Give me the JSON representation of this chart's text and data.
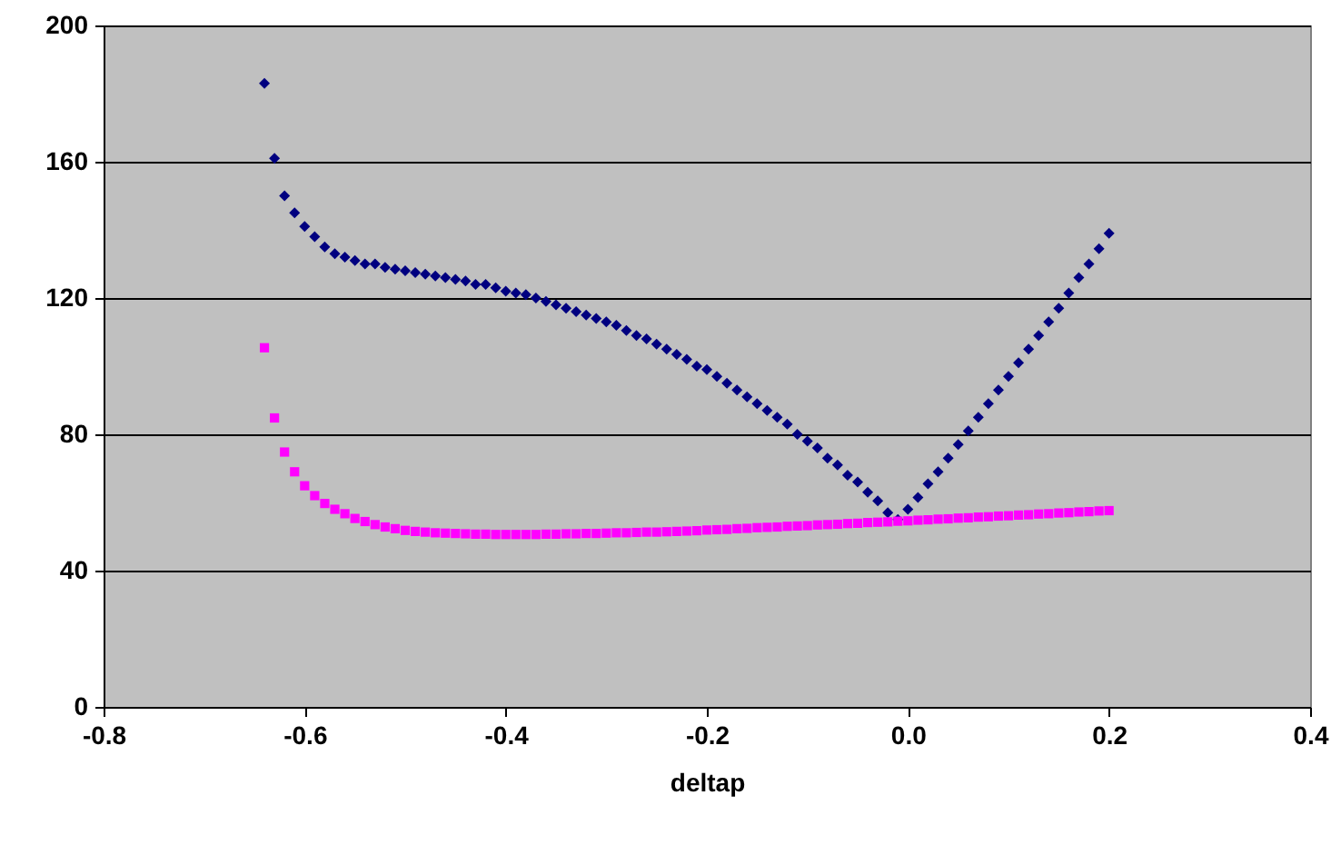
{
  "chart_data": {
    "type": "scatter",
    "xlabel": "deltap",
    "x": [
      -0.64,
      -0.63,
      -0.62,
      -0.61,
      -0.6,
      -0.59,
      -0.58,
      -0.57,
      -0.56,
      -0.55,
      -0.54,
      -0.53,
      -0.52,
      -0.51,
      -0.5,
      -0.49,
      -0.48,
      -0.47,
      -0.46,
      -0.45,
      -0.44,
      -0.43,
      -0.42,
      -0.41,
      -0.4,
      -0.39,
      -0.38,
      -0.37,
      -0.36,
      -0.35,
      -0.34,
      -0.33,
      -0.32,
      -0.31,
      -0.3,
      -0.29,
      -0.28,
      -0.27,
      -0.26,
      -0.25,
      -0.24,
      -0.23,
      -0.22,
      -0.21,
      -0.2,
      -0.19,
      -0.18,
      -0.17,
      -0.16,
      -0.15,
      -0.14,
      -0.13,
      -0.12,
      -0.11,
      -0.1,
      -0.09,
      -0.08,
      -0.07,
      -0.06,
      -0.05,
      -0.04,
      -0.03,
      -0.02,
      -0.01,
      0,
      0.01,
      0.02,
      0.03,
      0.04,
      0.05,
      0.06,
      0.07,
      0.08,
      0.09,
      0.1,
      0.11,
      0.12,
      0.13,
      0.14,
      0.15,
      0.16,
      0.17,
      0.18,
      0.19,
      0.2
    ],
    "series": [
      {
        "color": "#000080",
        "marker": "diamond",
        "values": [
          183,
          161,
          150,
          145,
          141,
          138,
          135,
          133,
          132,
          131,
          130,
          130,
          129,
          128.5,
          128,
          127.5,
          127,
          126.5,
          126,
          125.5,
          125,
          124,
          124,
          123,
          122,
          121.5,
          121,
          120,
          119,
          118,
          117,
          116,
          115,
          114,
          113,
          112,
          110.5,
          109,
          108,
          106.5,
          105,
          103.5,
          102,
          100,
          99,
          97,
          95,
          93,
          91,
          89,
          87,
          85,
          83,
          80,
          78,
          76,
          73,
          71,
          68,
          66,
          63,
          60.5,
          57,
          55,
          58,
          61.5,
          65.5,
          69,
          73,
          77,
          81,
          85,
          89,
          93,
          97,
          101,
          105,
          109,
          113,
          117,
          121.5,
          126,
          130,
          134.5,
          139
        ]
      },
      {
        "color": "#ff00ff",
        "marker": "square",
        "values": [
          105.4,
          84.8,
          74.8,
          69,
          64.9,
          62,
          59.7,
          58,
          56.7,
          55.3,
          54.4,
          53.5,
          52.8,
          52.3,
          51.8,
          51.5,
          51.3,
          51.1,
          51,
          50.9,
          50.8,
          50.7,
          50.7,
          50.6,
          50.6,
          50.6,
          50.6,
          50.6,
          50.7,
          50.7,
          50.8,
          50.8,
          50.9,
          50.9,
          51,
          51.1,
          51.1,
          51.2,
          51.3,
          51.3,
          51.4,
          51.5,
          51.6,
          51.7,
          51.9,
          52,
          52.1,
          52.3,
          52.4,
          52.6,
          52.7,
          52.8,
          53,
          53.1,
          53.2,
          53.4,
          53.5,
          53.6,
          53.8,
          53.9,
          54.1,
          54.2,
          54.3,
          54.5,
          54.6,
          54.8,
          54.9,
          55.1,
          55.2,
          55.4,
          55.5,
          55.7,
          55.8,
          56,
          56.1,
          56.3,
          56.4,
          56.6,
          56.7,
          56.9,
          57,
          57.2,
          57.3,
          57.5,
          57.6
        ]
      }
    ],
    "xlim": [
      -0.8,
      0.4
    ],
    "xticks": [
      -0.8,
      -0.6,
      -0.4,
      -0.2,
      {
        "value": 0,
        "label": "0.0"
      },
      0.2,
      0.4
    ],
    "ylim": [
      0,
      200
    ],
    "yticks": [
      0,
      40,
      80,
      120,
      160,
      200
    ],
    "grid": "y"
  }
}
